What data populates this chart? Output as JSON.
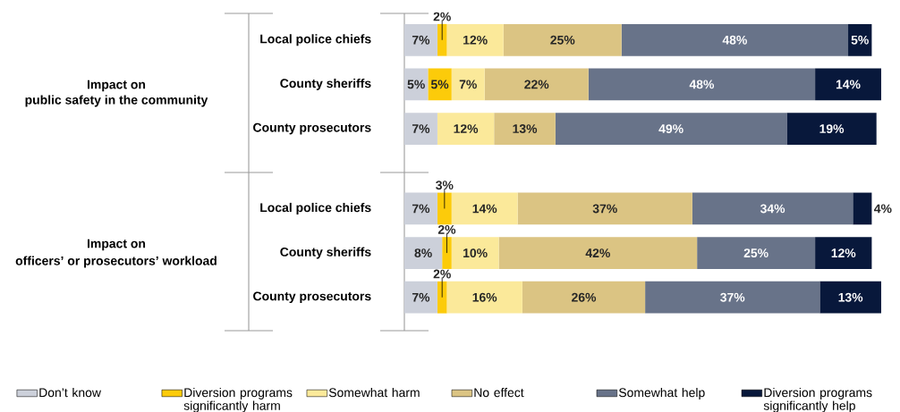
{
  "chart_data": {
    "type": "bar",
    "orientation": "horizontal",
    "stacked": true,
    "data_labels": true,
    "legend": "bottom",
    "categories": [
      "Local police chiefs",
      "County sheriffs",
      "County prosecutors",
      "Local police chiefs",
      "County sheriffs",
      "County prosecutors"
    ],
    "annotations": [
      "Impact on",
      "public safety in the community",
      "Impact on",
      "officers’ or prosecutors’ workload"
    ],
    "series": [
      {
        "name": "Don’t know",
        "color": "#ccd0da",
        "values": [
          7,
          5,
          7,
          7,
          8,
          7
        ],
        "value_labels": [
          "7%",
          "5%",
          "7%",
          "7%",
          "8%",
          "7%"
        ]
      },
      {
        "name": "Diversion programs significantly harm",
        "color": "#fccb0a",
        "values": [
          2,
          5,
          null,
          3,
          2,
          2
        ],
        "value_labels": [
          "2%",
          "5%",
          null,
          "3%",
          "2%",
          "2%"
        ]
      },
      {
        "name": "Somewhat harm",
        "color": "#fbe99a",
        "values": [
          12,
          7,
          12,
          14,
          10,
          16
        ],
        "value_labels": [
          "12%",
          "7%",
          "12%",
          "14%",
          "10%",
          "16%"
        ]
      },
      {
        "name": "No effect",
        "color": "#dbc483",
        "values": [
          25,
          22,
          13,
          37,
          42,
          26
        ],
        "value_labels": [
          "25%",
          "22%",
          "13%",
          "37%",
          "42%",
          "26%"
        ]
      },
      {
        "name": "Somewhat help",
        "color": "#687389",
        "values": [
          48,
          48,
          49,
          34,
          25,
          37
        ],
        "value_labels": [
          "48%",
          "48%",
          "49%",
          "34%",
          "25%",
          "37%"
        ]
      },
      {
        "name": "Diversion programs significantly help",
        "color": "#08183b",
        "values": [
          5,
          14,
          19,
          4,
          12,
          13
        ],
        "value_labels": [
          "5%",
          "14%",
          "19%",
          "4%",
          "12%",
          "13%"
        ]
      }
    ]
  }
}
